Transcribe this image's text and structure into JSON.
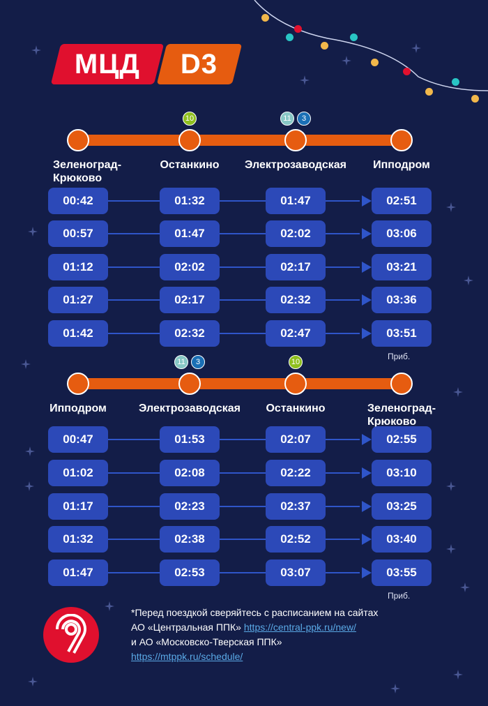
{
  "logo": {
    "mcd": "МЦД",
    "line": "D3"
  },
  "colors": {
    "background": "#131d48",
    "line": "#e65c10",
    "box": "#2c49b8",
    "brand_red": "#e0102e"
  },
  "section1": {
    "stations": [
      {
        "name": "Зеленоград-\nКрюково",
        "badges": []
      },
      {
        "name": "Останкино",
        "badges": [
          {
            "label": "10",
            "color": "#8fbf1f"
          }
        ]
      },
      {
        "name": "Электрозаводская",
        "badges": [
          {
            "label": "11",
            "color": "#87c7c5"
          },
          {
            "label": "3",
            "color": "#1a6fb5"
          }
        ]
      },
      {
        "name": "Ипподром",
        "badges": []
      }
    ],
    "rows": [
      [
        "00:42",
        "01:32",
        "01:47",
        "02:51"
      ],
      [
        "00:57",
        "01:47",
        "02:02",
        "03:06"
      ],
      [
        "01:12",
        "02:02",
        "02:17",
        "03:21"
      ],
      [
        "01:27",
        "02:17",
        "02:32",
        "03:36"
      ],
      [
        "01:42",
        "02:32",
        "02:47",
        "03:51"
      ]
    ],
    "note": "Приб."
  },
  "section2": {
    "stations": [
      {
        "name": "Ипподром",
        "badges": []
      },
      {
        "name": "Электрозаводская",
        "badges": [
          {
            "label": "11",
            "color": "#87c7c5"
          },
          {
            "label": "3",
            "color": "#1a6fb5"
          }
        ]
      },
      {
        "name": "Останкино",
        "badges": [
          {
            "label": "10",
            "color": "#8fbf1f"
          }
        ]
      },
      {
        "name": "Зеленоград-\nКрюково",
        "badges": []
      }
    ],
    "rows": [
      [
        "00:47",
        "01:53",
        "02:07",
        "02:55"
      ],
      [
        "01:02",
        "02:08",
        "02:22",
        "03:10"
      ],
      [
        "01:17",
        "02:23",
        "02:37",
        "03:25"
      ],
      [
        "01:32",
        "02:38",
        "02:52",
        "03:40"
      ],
      [
        "01:47",
        "02:53",
        "03:07",
        "03:55"
      ]
    ],
    "note": "Приб."
  },
  "footer": {
    "line1": "*Перед поездкой сверяйтесь с расписанием на сайтах",
    "line2": "АО «Центральная ППК» ",
    "link1": "https://central-ppk.ru/new/",
    "line3": "и АО «Московско-Тверская ППК»",
    "link2": "https://mtppk.ru/schedule/"
  }
}
